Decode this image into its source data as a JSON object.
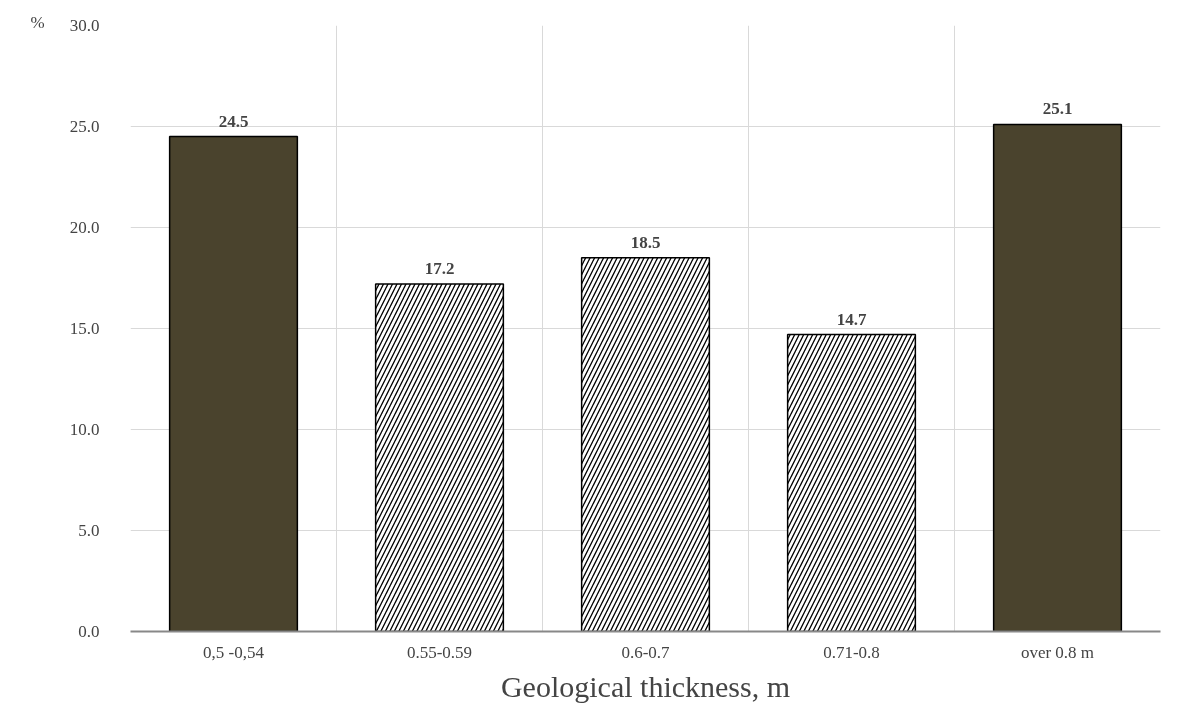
{
  "chart_data": {
    "type": "bar",
    "xlabel": "Geological thickness, m",
    "ylabel": "%",
    "categories": [
      "0,5 -0,54",
      "0.55-0.59",
      "0.6-0.7",
      "0.71-0.8",
      "over 0.8 m"
    ],
    "values": [
      24.5,
      17.2,
      18.5,
      14.7,
      25.1
    ],
    "colors": [
      "#4a432d",
      "#ffffff",
      "#ffffff",
      "#ffffff",
      "#4a432d"
    ],
    "ylim": [
      0,
      30
    ],
    "yticks": [
      {
        "value": 0,
        "label": "0.0"
      },
      {
        "value": 5,
        "label": "5.0"
      },
      {
        "value": 10,
        "label": "10.0"
      },
      {
        "value": 15,
        "label": "15.0"
      },
      {
        "value": 20,
        "label": "20.0"
      },
      {
        "value": 25,
        "label": "25.0"
      },
      {
        "value": 30,
        "label": "30.0"
      }
    ],
    "grid": true,
    "data_labels": true
  }
}
